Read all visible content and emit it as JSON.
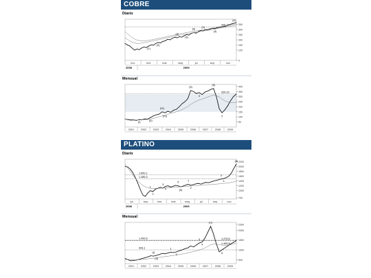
{
  "sections": [
    {
      "title": "COBRE"
    },
    {
      "title": "PLATINO"
    }
  ],
  "colors": {
    "header_bg": "#1d4e7b",
    "header_text": "#ffffff",
    "price": "#000000",
    "ma": "#777777",
    "band": "#c7d4e2"
  },
  "chart_data": [
    {
      "id": "cobre-diario",
      "type": "line",
      "panel_label": "Diario",
      "ylim": [
        0,
        400
      ],
      "ticks_y": [
        0,
        100,
        150,
        200,
        250,
        300,
        350
      ],
      "x_tick_labels": [
        "nov.",
        "ene.",
        "mar.",
        "may.",
        "jul.",
        "sep.",
        "nov."
      ],
      "period_labels": [
        "2008",
        "2009"
      ],
      "reference_line": {
        "value": 326.15,
        "label": "326,15"
      },
      "series": [
        {
          "values": [
            165,
            150,
            140,
            120,
            100,
            110,
            105,
            120,
            130,
            125,
            140,
            150,
            148,
            165,
            175,
            170,
            185,
            190,
            205,
            200,
            215,
            225,
            220,
            230,
            226,
            240,
            250,
            246,
            262,
            270,
            265,
            280,
            290,
            286,
            300,
            296,
            305,
            312,
            308,
            318,
            322,
            326,
            330,
            335,
            345,
            355,
            360,
            368
          ]
        },
        {
          "values": [
            220,
            205,
            190,
            178,
            170,
            165,
            165,
            168,
            172,
            176,
            181,
            186,
            191,
            196,
            201,
            206,
            211,
            216,
            221,
            226,
            231,
            236,
            241,
            245,
            249,
            253,
            257,
            261,
            265,
            269,
            273,
            277,
            281,
            285,
            289,
            293,
            297,
            301,
            305,
            309,
            313,
            317,
            321,
            325,
            329,
            333,
            337,
            341
          ]
        },
        {
          "values": [
            280,
            260,
            240,
            222,
            208,
            198,
            192,
            190,
            190,
            192,
            195,
            199,
            203,
            208,
            213,
            218,
            223,
            228,
            233,
            238,
            243,
            248,
            253,
            258,
            262,
            266,
            270,
            274,
            278,
            282,
            286,
            290,
            294,
            298,
            302,
            306,
            310,
            314,
            318,
            322,
            326,
            330,
            334,
            338,
            342,
            346,
            350,
            354
          ]
        }
      ],
      "wave_labels": [
        {
          "text": "(1)",
          "i": 10,
          "dy": 10
        },
        {
          "text": "(2)",
          "i": 14,
          "dy": 10
        },
        {
          "text": "(3)",
          "i": 22,
          "dy": -8
        },
        {
          "text": "(4)",
          "i": 26,
          "dy": 10
        },
        {
          "text": "(5)",
          "i": 29,
          "dy": -8
        },
        {
          "text": "(4)",
          "i": 33,
          "dy": -8
        },
        {
          "text": "(3)",
          "i": 38,
          "dy": 10
        },
        {
          "text": "(5)",
          "i": 46,
          "dy": -6
        }
      ]
    },
    {
      "id": "cobre-mensual",
      "type": "line",
      "panel_label": "Mensual",
      "ylim": [
        0,
        420
      ],
      "ticks_y": [
        50,
        100,
        150,
        200,
        250,
        300,
        350,
        400
      ],
      "x_tick_labels": [
        "2001",
        "2002",
        "2003",
        "2004",
        "2005",
        "2006",
        "2007",
        "2008",
        "2009"
      ],
      "reference_line": {
        "value": 326.15,
        "label": "326,15"
      },
      "series": [
        {
          "values": [
            80,
            72,
            68,
            70,
            66,
            74,
            72,
            80,
            78,
            95,
            110,
            120,
            128,
            150,
            140,
            155,
            145,
            165,
            175,
            200,
            230,
            250,
            280,
            360,
            350,
            330,
            340,
            320,
            345,
            355,
            370,
            380,
            300,
            180,
            140,
            170,
            210,
            260,
            300,
            326
          ]
        },
        {
          "values": [
            78,
            76,
            73,
            71,
            69,
            70,
            71,
            73,
            75,
            80,
            86,
            93,
            101,
            110,
            118,
            126,
            134,
            142,
            150,
            160,
            172,
            186,
            202,
            222,
            240,
            254,
            266,
            276,
            286,
            296,
            306,
            314,
            310,
            296,
            276,
            258,
            246,
            240,
            240,
            244
          ]
        }
      ],
      "band": {
        "from": 150,
        "to": 320
      },
      "wave_labels": [
        {
          "text": "(I)",
          "i": 5,
          "dy": 10
        },
        {
          "text": "(II)",
          "i": 9,
          "dy": 12
        },
        {
          "text": "(III)",
          "i": 13,
          "dy": -8
        },
        {
          "text": "(IV)",
          "i": 14,
          "dy": 12
        },
        {
          "text": "(5)",
          "i": 23,
          "dy": -8
        },
        {
          "text": "(5)",
          "i": 31,
          "dy": -8
        },
        {
          "text": "2",
          "i": 34,
          "dy": 12
        },
        {
          "text": "3",
          "i": 26,
          "dy": 12
        }
      ]
    },
    {
      "id": "platino-diario",
      "type": "line",
      "panel_label": "Diario",
      "ylim": [
        650,
        2300
      ],
      "ticks_y": [
        700,
        1000,
        1200,
        1400,
        1600,
        1800,
        2000,
        2200
      ],
      "x_tick_labels": [
        "jul.",
        "sep.",
        "ene.",
        "mar.",
        "may.",
        "jul.",
        "sep.",
        "nov."
      ],
      "period_labels": [
        "2008",
        "2009"
      ],
      "reference_lines": [
        {
          "value": 1650.1,
          "label": "1.650,1"
        },
        {
          "value": 1486.3,
          "label": "1.486,3"
        }
      ],
      "series": [
        {
          "values": [
            2000,
            1980,
            1900,
            1760,
            1560,
            1320,
            1050,
            820,
            760,
            900,
            1000,
            960,
            1060,
            1100,
            1140,
            1100,
            1180,
            1200,
            1150,
            1180,
            1220,
            1200,
            1160,
            1190,
            1230,
            1260,
            1220,
            1250,
            1280,
            1300,
            1270,
            1310,
            1340,
            1330,
            1360,
            1400,
            1420,
            1450,
            1480,
            1500,
            1540,
            1600,
            1720,
            1920,
            2100
          ]
        },
        {
          "values": [
            2100,
            1950,
            1800,
            1660,
            1520,
            1400,
            1300,
            1220,
            1160,
            1120,
            1100,
            1090,
            1090,
            1095,
            1100,
            1105,
            1110,
            1118,
            1126,
            1134,
            1142,
            1150,
            1158,
            1166,
            1174,
            1182,
            1190,
            1198,
            1206,
            1214,
            1222,
            1230,
            1238,
            1246,
            1254,
            1262,
            1270,
            1280,
            1290,
            1300,
            1310,
            1320,
            1340,
            1360,
            1380
          ]
        }
      ],
      "wave_labels": [
        {
          "text": "1",
          "i": 10,
          "dy": -8
        },
        {
          "text": "2",
          "i": 11,
          "dy": 10
        },
        {
          "text": "3",
          "i": 15,
          "dy": -8
        },
        {
          "text": "4",
          "i": 16,
          "dy": 10
        },
        {
          "text": "5",
          "i": 21,
          "dy": -8
        },
        {
          "text": "(II)",
          "i": 22,
          "dy": 12
        },
        {
          "text": "1",
          "i": 25,
          "dy": -8
        },
        {
          "text": "2",
          "i": 26,
          "dy": 10
        },
        {
          "text": "3",
          "i": 38,
          "dy": -8
        },
        {
          "text": "4",
          "i": 39,
          "dy": 10
        },
        {
          "text": "(II)",
          "i": 44,
          "dy": -6
        }
      ]
    },
    {
      "id": "platino-mensual",
      "type": "line",
      "panel_label": "Mensual",
      "ylim": [
        300,
        2400
      ],
      "ticks_y": [
        500,
        1000,
        1500,
        2000,
        2300
      ],
      "x_tick_labels": [
        "2001",
        "2002",
        "2003",
        "2004",
        "2005",
        "2006",
        "2007",
        "2008",
        "2009"
      ],
      "reference_lines": [
        {
          "value": 1492.8,
          "label": "1.492,8"
        },
        {
          "value": 999.1,
          "label": "999,1"
        },
        {
          "value": 1476.6,
          "label": "1.476,6"
        },
        {
          "value": 1465.5,
          "label": "1.465,5"
        }
      ],
      "series": [
        {
          "values": [
            560,
            500,
            440,
            460,
            480,
            520,
            560,
            600,
            640,
            700,
            680,
            720,
            760,
            820,
            800,
            840,
            880,
            860,
            900,
            950,
            1000,
            1060,
            1100,
            1200,
            1150,
            1250,
            1350,
            1400,
            1600,
            1900,
            2200,
            1800,
            1300,
            900,
            1000,
            1100,
            1200,
            1300,
            1380,
            1476
          ]
        },
        {
          "values": [
            520,
            505,
            495,
            492,
            494,
            500,
            510,
            524,
            540,
            560,
            578,
            596,
            615,
            636,
            656,
            676,
            696,
            716,
            738,
            762,
            788,
            816,
            846,
            880,
            912,
            948,
            990,
            1040,
            1100,
            1180,
            1260,
            1300,
            1300,
            1270,
            1240,
            1230,
            1240,
            1260,
            1300,
            1340
          ]
        }
      ],
      "wave_labels": [
        {
          "text": "(I)",
          "i": 10,
          "dy": -8
        },
        {
          "text": "(II)",
          "i": 11,
          "dy": 12
        },
        {
          "text": "1",
          "i": 16,
          "dy": -8
        },
        {
          "text": "2",
          "i": 18,
          "dy": 10
        },
        {
          "text": "3",
          "i": 26,
          "dy": -8
        },
        {
          "text": "4",
          "i": 27,
          "dy": 10
        },
        {
          "text": "(C)",
          "i": 30,
          "dy": -8
        },
        {
          "text": "5",
          "i": 34,
          "dy": 12
        }
      ]
    }
  ]
}
